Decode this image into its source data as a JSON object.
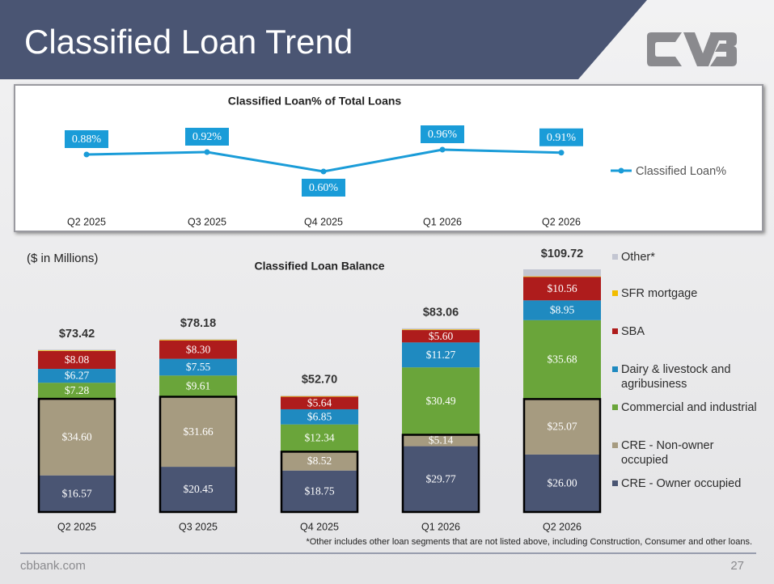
{
  "title": "Classified Loan Trend",
  "units_note": "($ in Millions)",
  "footnote": "*Other includes other loan segments that are not listed above, including Construction, Consumer and other loans.",
  "footer": {
    "site": "cbbank.com",
    "page": "27"
  },
  "chart_data": [
    {
      "type": "line",
      "title": "Classified Loan% of Total Loans",
      "categories": [
        "Q2 2025",
        "Q3 2025",
        "Q4 2025",
        "Q1 2026",
        "Q2 2026"
      ],
      "series": [
        {
          "name": "Classified Loan%",
          "color": "#1a9cd8",
          "values": [
            0.88,
            0.92,
            0.6,
            0.96,
            0.91
          ],
          "value_labels": [
            "0.88%",
            "0.92%",
            "0.60%",
            "0.96%",
            "0.91%"
          ]
        }
      ],
      "legend": "right"
    },
    {
      "type": "stacked_bar",
      "title": "Classified Loan Balance",
      "categories": [
        "Q2 2025",
        "Q3 2025",
        "Q4 2025",
        "Q1 2026",
        "Q2 2026"
      ],
      "series": [
        {
          "name": "CRE - Owner occupied",
          "color": "#4a5573",
          "values": [
            16.57,
            20.45,
            18.75,
            29.77,
            26.0
          ],
          "value_labels": [
            "$16.57",
            "$20.45",
            "$18.75",
            "$29.77",
            "$26.00"
          ]
        },
        {
          "name": "CRE - Non-owner occupied",
          "color": "#a69b80",
          "values": [
            34.6,
            31.66,
            8.52,
            5.14,
            25.07
          ],
          "value_labels": [
            "$34.60",
            "$31.66",
            "$8.52",
            "$5.14",
            "$25.07"
          ]
        },
        {
          "name": "Commercial and industrial",
          "color": "#6aa53a",
          "values": [
            7.28,
            9.61,
            12.34,
            30.49,
            35.68
          ],
          "value_labels": [
            "$7.28",
            "$9.61",
            "$12.34",
            "$30.49",
            "$35.68"
          ]
        },
        {
          "name": "Dairy & livestock and agribusiness",
          "color": "#1f8ac0",
          "values": [
            6.27,
            7.55,
            6.85,
            11.27,
            8.95
          ],
          "value_labels": [
            "$6.27",
            "$7.55",
            "$6.85",
            "$11.27",
            "$8.95"
          ]
        },
        {
          "name": "SBA",
          "color": "#ae1c1c",
          "values": [
            8.08,
            8.3,
            5.64,
            5.6,
            10.56
          ],
          "value_labels": [
            "$8.08",
            "$8.30",
            "$5.64",
            "$5.60",
            "$10.56"
          ]
        },
        {
          "name": "SFR mortgage",
          "color": "#f2bd00",
          "values": [
            0.3,
            0.3,
            0.3,
            0.3,
            0.3
          ]
        },
        {
          "name": "Other*",
          "color": "#c3c6d2",
          "values": [
            0.32,
            0.31,
            0.3,
            0.49,
            3.16
          ]
        }
      ],
      "totals": [
        73.42,
        78.18,
        52.7,
        83.06,
        109.72
      ],
      "total_labels": [
        "$73.42",
        "$78.18",
        "$52.70",
        "$83.06",
        "$109.72"
      ],
      "legend": "right"
    }
  ]
}
